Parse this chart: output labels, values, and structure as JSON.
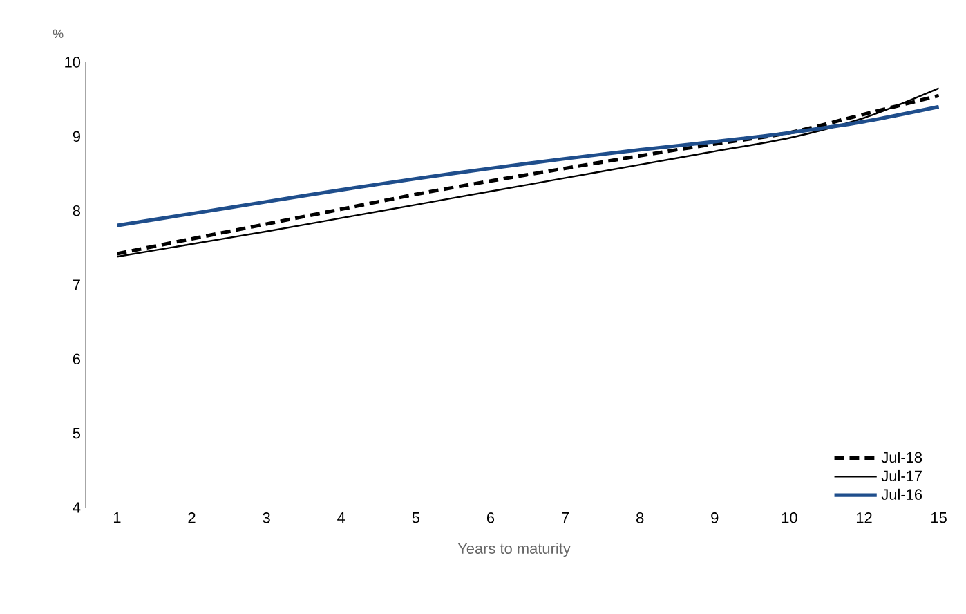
{
  "chart_data": {
    "type": "line",
    "ylabel": "%",
    "xlabel": "Years to maturity",
    "categories": [
      "1",
      "2",
      "3",
      "4",
      "5",
      "6",
      "7",
      "8",
      "9",
      "10",
      "12",
      "15"
    ],
    "ylim": [
      4,
      10
    ],
    "yticks": [
      4,
      5,
      6,
      7,
      8,
      9,
      10
    ],
    "grid": false,
    "legend": "bottom right",
    "marker": "none",
    "series": [
      {
        "name": "Jul-18",
        "color": "#000000",
        "line_style": "dashed",
        "values": [
          7.42,
          7.62,
          7.82,
          8.02,
          8.22,
          8.4,
          8.57,
          8.74,
          8.9,
          9.05,
          9.3,
          9.55
        ]
      },
      {
        "name": "Jul-17",
        "color": "#000000",
        "line_style": "solid",
        "values": [
          7.38,
          7.55,
          7.72,
          7.9,
          8.08,
          8.26,
          8.44,
          8.62,
          8.8,
          8.98,
          9.25,
          9.65
        ]
      },
      {
        "name": "Jul-16",
        "color": "#1f4e8c",
        "line_style": "solid",
        "values": [
          7.8,
          7.96,
          8.12,
          8.28,
          8.43,
          8.57,
          8.7,
          8.82,
          8.93,
          9.05,
          9.2,
          9.4
        ]
      }
    ]
  }
}
